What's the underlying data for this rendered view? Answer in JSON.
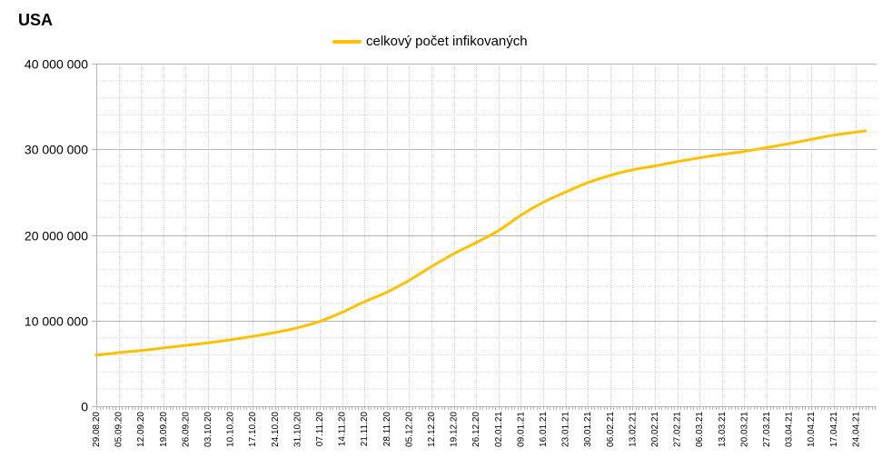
{
  "chart_data": {
    "type": "line",
    "title": "USA",
    "xlabel": "",
    "ylabel": "",
    "ylim": [
      0,
      40000000
    ],
    "yticks": [
      0,
      10000000,
      20000000,
      30000000,
      40000000
    ],
    "ytick_labels": [
      "0",
      "10 000 000",
      "20 000 000",
      "30 000 000",
      "40 000 000"
    ],
    "grid": true,
    "legend": "top-center",
    "x_tick_labels": [
      "29.08.20",
      "05.09.20",
      "12.09.20",
      "19.09.20",
      "26.09.20",
      "03.10.20",
      "10.10.20",
      "17.10.20",
      "24.10.20",
      "31.10.20",
      "07.11.20",
      "14.11.20",
      "21.11.20",
      "28.11.20",
      "05.12.20",
      "12.12.20",
      "19.12.20",
      "26.12.20",
      "02.01.21",
      "09.01.21",
      "16.01.21",
      "23.01.21",
      "30.01.21",
      "06.02.21",
      "13.02.21",
      "20.02.21",
      "27.02.21",
      "06.03.21",
      "13.03.21",
      "20.03.21",
      "27.03.21",
      "03.04.21",
      "10.04.21",
      "17.04.21",
      "24.04.21"
    ],
    "series": [
      {
        "name": "celkový počet infikovaných",
        "color": "#ffc000",
        "x": [
          "29.08.20",
          "05.09.20",
          "12.09.20",
          "19.09.20",
          "26.09.20",
          "03.10.20",
          "10.10.20",
          "17.10.20",
          "24.10.20",
          "31.10.20",
          "07.11.20",
          "14.11.20",
          "21.11.20",
          "28.11.20",
          "05.12.20",
          "12.12.20",
          "19.12.20",
          "26.12.20",
          "02.01.21",
          "09.01.21",
          "16.01.21",
          "23.01.21",
          "30.01.21",
          "06.02.21",
          "13.02.21",
          "20.02.21",
          "27.02.21",
          "06.03.21",
          "13.03.21",
          "20.03.21",
          "27.03.21",
          "03.04.21",
          "10.04.21",
          "17.04.21",
          "24.04.21",
          "27.04.21"
        ],
        "values": [
          5950000,
          6250000,
          6500000,
          6800000,
          7100000,
          7400000,
          7750000,
          8150000,
          8600000,
          9150000,
          9900000,
          10950000,
          12200000,
          13300000,
          14700000,
          16300000,
          17800000,
          19100000,
          20500000,
          22300000,
          23800000,
          25000000,
          26100000,
          26950000,
          27600000,
          28050000,
          28550000,
          29000000,
          29400000,
          29750000,
          30200000,
          30650000,
          31150000,
          31650000,
          32000000,
          32150000
        ]
      }
    ]
  }
}
